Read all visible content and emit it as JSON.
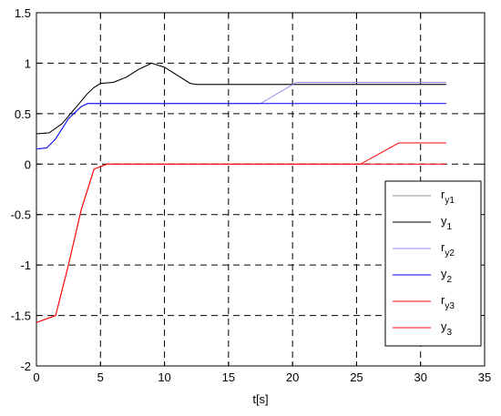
{
  "chart_data": {
    "type": "line",
    "title": "",
    "xlabel": "t[s]",
    "ylabel": "",
    "xlim": [
      0,
      35
    ],
    "ylim": [
      -2,
      1.5
    ],
    "xticks": [
      0,
      5,
      10,
      15,
      20,
      25,
      30,
      35
    ],
    "xtick_labels": [
      "0",
      "5",
      "10",
      "15",
      "20",
      "25",
      "30",
      "35"
    ],
    "yticks": [
      -2,
      -1.5,
      -1,
      -0.5,
      0,
      0.5,
      1,
      1.5
    ],
    "ytick_labels": [
      "-2",
      "-1.5",
      "-1",
      "-0.5",
      "0",
      "0.5",
      "1",
      "1.5"
    ],
    "grid": true,
    "legend_position": "right-middle",
    "series": [
      {
        "name": "r_y1",
        "label": "r",
        "sub": "y1",
        "color": "#8c8c8c",
        "width": 1,
        "dash": "",
        "x": [
          0,
          1,
          2,
          3,
          4,
          4.5,
          5,
          6,
          7,
          8,
          9,
          10,
          11,
          12,
          12.5,
          32
        ],
        "y": [
          0.3,
          0.31,
          0.4,
          0.55,
          0.7,
          0.76,
          0.8,
          0.81,
          0.86,
          0.94,
          1.0,
          0.96,
          0.88,
          0.8,
          0.79,
          0.79
        ]
      },
      {
        "name": "y_1",
        "label": "y",
        "sub": "1",
        "color": "#000000",
        "width": 1,
        "dash": "",
        "x": [
          0,
          1,
          2,
          3,
          4,
          4.5,
          5,
          6,
          7,
          8,
          9,
          10,
          11,
          12,
          12.5,
          32
        ],
        "y": [
          0.3,
          0.31,
          0.4,
          0.55,
          0.7,
          0.76,
          0.8,
          0.81,
          0.86,
          0.94,
          1.0,
          0.96,
          0.88,
          0.8,
          0.79,
          0.79
        ]
      },
      {
        "name": "r_y2",
        "label": "r",
        "sub": "y2",
        "color": "#8c8cf0",
        "width": 1,
        "dash": "",
        "x": [
          0,
          0.8,
          1.5,
          2.5,
          3.5,
          4.0,
          17.5,
          20.3,
          32
        ],
        "y": [
          0.15,
          0.16,
          0.25,
          0.45,
          0.57,
          0.6,
          0.6,
          0.81,
          0.81
        ]
      },
      {
        "name": "y_2",
        "label": "y",
        "sub": "2",
        "color": "#0000ff",
        "width": 1,
        "dash": "",
        "x": [
          0,
          0.8,
          1.5,
          2.5,
          3.5,
          4.0,
          32
        ],
        "y": [
          0.15,
          0.16,
          0.25,
          0.45,
          0.57,
          0.6,
          0.6
        ]
      },
      {
        "name": "r_y3",
        "label": "r",
        "sub": "y3",
        "color": "#ff0000",
        "width": 1,
        "dash": "",
        "x": [
          0,
          1.5,
          2.5,
          3.5,
          4.5,
          5.5,
          6,
          25.3,
          28.3,
          32
        ],
        "y": [
          -1.57,
          -1.5,
          -1.0,
          -0.45,
          -0.05,
          0.0,
          0.0,
          0.0,
          0.21,
          0.21
        ]
      },
      {
        "name": "y_3",
        "label": "y",
        "sub": "3",
        "color": "#ff0000",
        "width": 1,
        "dash": "",
        "x": [
          0,
          1.5,
          2.5,
          3.5,
          4.5,
          5.5,
          6,
          32
        ],
        "y": [
          -1.57,
          -1.5,
          -1.0,
          -0.45,
          -0.05,
          0.0,
          0.0,
          0.0
        ]
      }
    ]
  }
}
